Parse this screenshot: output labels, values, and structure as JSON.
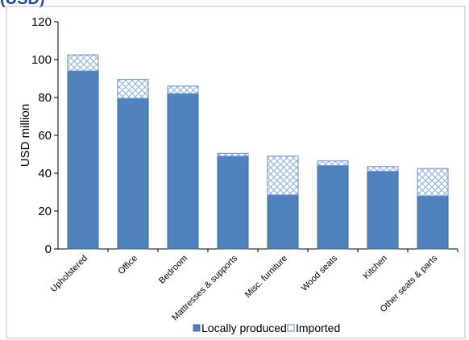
{
  "header_fragment": "(USD)",
  "colors": {
    "local": "#4f81bd",
    "local_edge": "#3a6aa6",
    "imported_hatch": "#9ab7dd",
    "imported_edge": "#6a8fc2"
  },
  "chart_data": {
    "type": "bar",
    "stacked": true,
    "categories": [
      "Upholstered",
      "Office",
      "Bedroom",
      "Mattresses & supports",
      "Misc. furniture",
      "Wood seats",
      "Kitchen",
      "Other seats & parts"
    ],
    "series": [
      {
        "name": "Locally produced",
        "values": [
          94,
          79.5,
          82,
          49,
          28.5,
          44,
          41,
          28
        ]
      },
      {
        "name": "Imported",
        "values": [
          8.5,
          10,
          4,
          1.5,
          20.5,
          2.5,
          2.5,
          14.5
        ]
      }
    ],
    "ylabel": "USD million",
    "ylim": [
      0,
      120
    ],
    "yticks": [
      0,
      20,
      40,
      60,
      80,
      100,
      120
    ],
    "legend_position": "bottom",
    "grid": false
  }
}
